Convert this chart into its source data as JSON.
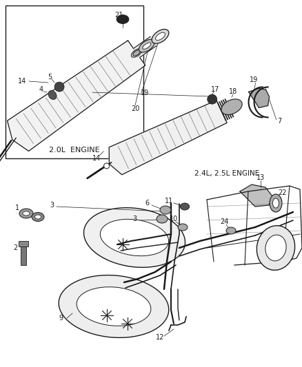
{
  "bg_color": "#ffffff",
  "lc": "#1a1a1a",
  "fig_width": 4.39,
  "fig_height": 5.33,
  "dpi": 100,
  "inset_label": "2.0L  ENGINE",
  "label_24": "2.4L, 2.5L ENGINE"
}
